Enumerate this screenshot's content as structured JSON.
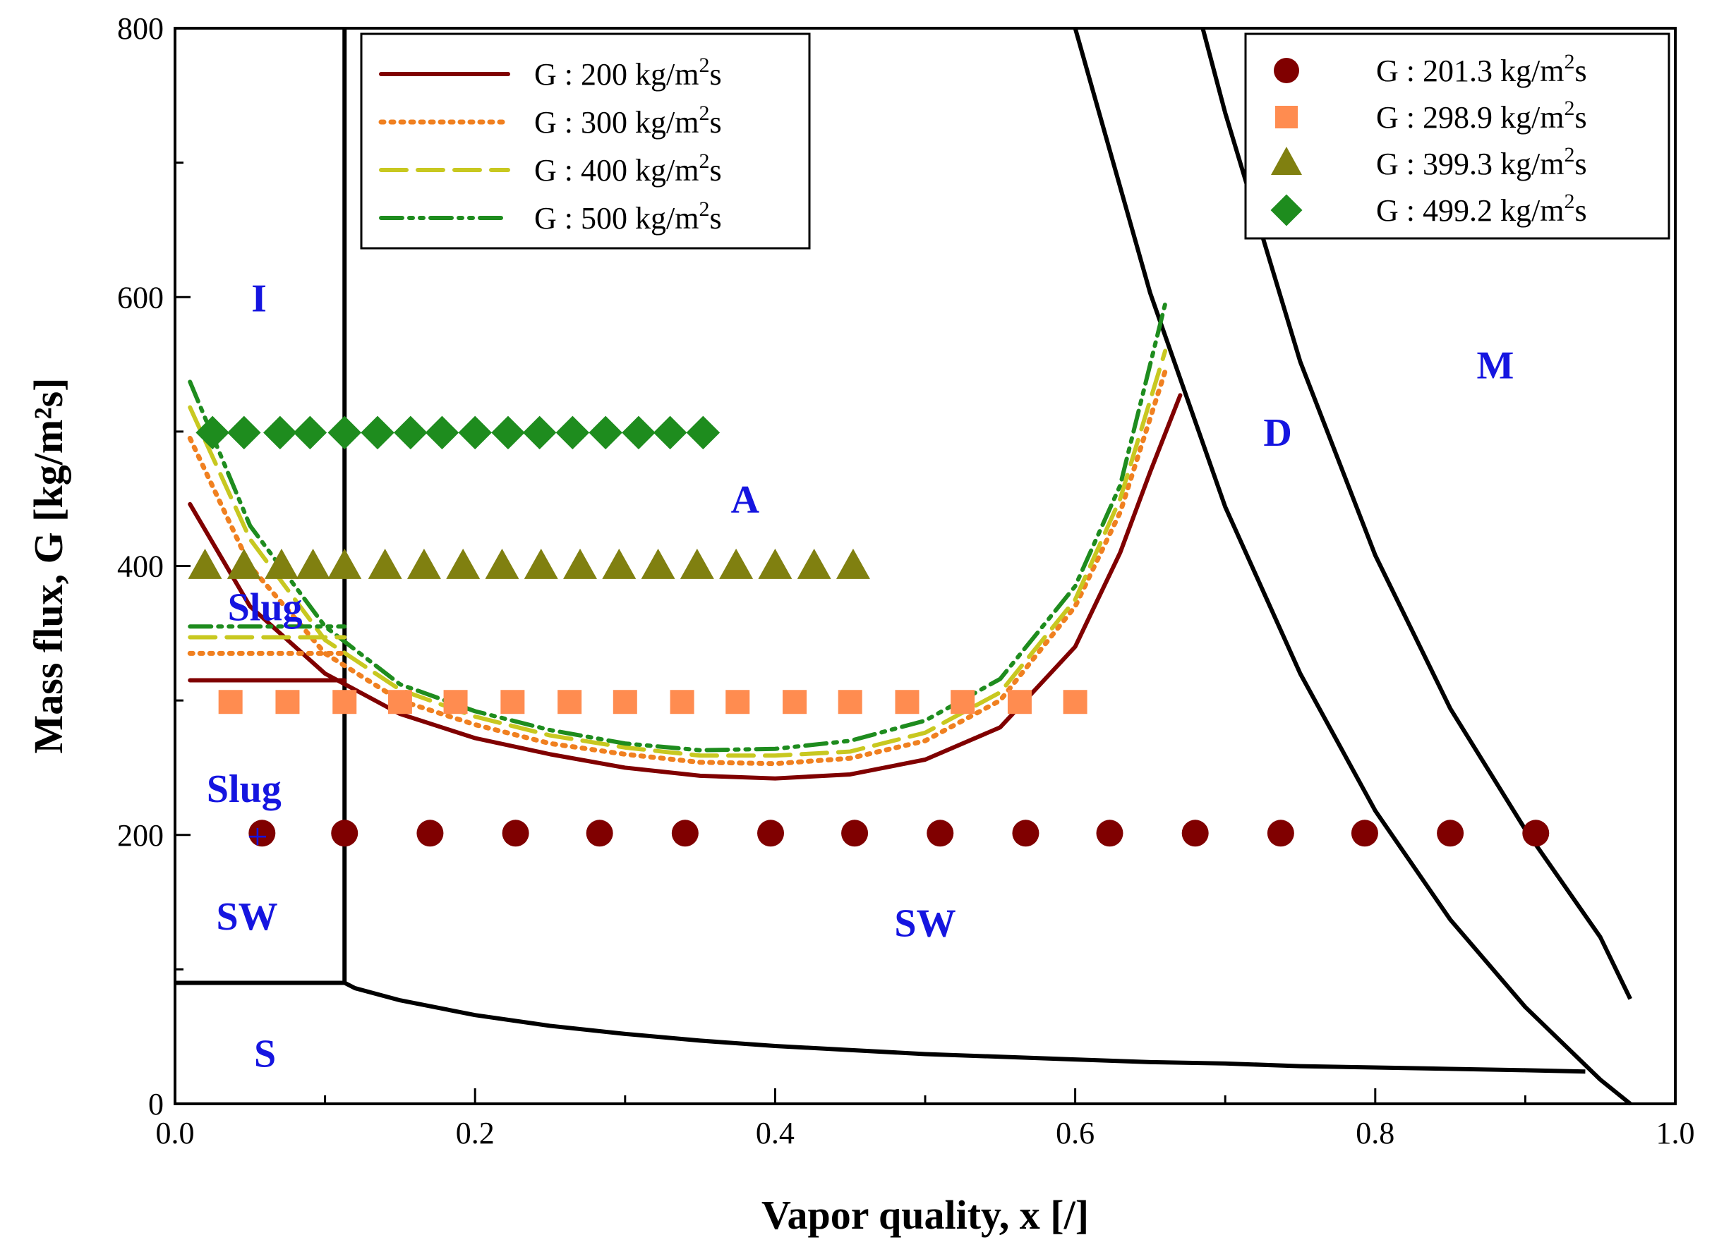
{
  "chart_data": {
    "type": "scatter",
    "title": "",
    "xlabel": "Vapor quality, x [/]",
    "ylabel": "Mass flux, G [kg/m²s]",
    "xlim": [
      0.0,
      1.0
    ],
    "ylim": [
      0,
      800
    ],
    "x_ticks": [
      "0.0",
      "0.2",
      "0.4",
      "0.6",
      "0.8",
      "1.0"
    ],
    "y_ticks": [
      "0",
      "200",
      "400",
      "600",
      "800"
    ],
    "grid": false,
    "boundaries": [
      {
        "name": "I-SW vertical",
        "x": [
          0.113,
          0.113
        ],
        "y": [
          90,
          800
        ]
      },
      {
        "name": "S boundary",
        "x": [
          0.0,
          0.113,
          0.12,
          0.15,
          0.2,
          0.25,
          0.3,
          0.35,
          0.4,
          0.45,
          0.5,
          0.55,
          0.6,
          0.65,
          0.7,
          0.75,
          0.8,
          0.85,
          0.9,
          0.94
        ],
        "y": [
          90,
          90,
          86,
          77,
          66,
          58,
          52,
          47,
          43,
          40,
          37,
          35,
          33,
          31,
          30,
          28,
          27,
          26,
          25,
          24
        ]
      },
      {
        "name": "D boundary (left)",
        "x": [
          0.6,
          0.65,
          0.7,
          0.75,
          0.8,
          0.85,
          0.9,
          0.95,
          0.97
        ],
        "y": [
          800,
          603,
          444,
          320,
          218,
          137,
          72,
          18,
          0
        ]
      },
      {
        "name": "M boundary",
        "x": [
          0.685,
          0.7,
          0.75,
          0.8,
          0.85,
          0.9,
          0.95,
          0.97
        ],
        "y": [
          800,
          737,
          552,
          408,
          294,
          204,
          124,
          78
        ]
      }
    ],
    "series": [
      {
        "name": "G: 200 kg/m²s",
        "kind": "model-line",
        "style": "solid",
        "color": "#800000",
        "x": [
          0.01,
          0.05,
          0.1,
          0.15,
          0.2,
          0.25,
          0.3,
          0.35,
          0.4,
          0.45,
          0.5,
          0.55,
          0.6,
          0.63,
          0.65,
          0.67
        ],
        "y": [
          446,
          370,
          320,
          290,
          272,
          260,
          250,
          244,
          242,
          245,
          256,
          280,
          340,
          410,
          470,
          527
        ]
      },
      {
        "name": "G: 300 kg/m²s",
        "kind": "model-line",
        "style": "dotted",
        "color": "#f08020",
        "x": [
          0.01,
          0.05,
          0.1,
          0.15,
          0.2,
          0.25,
          0.3,
          0.35,
          0.4,
          0.45,
          0.5,
          0.55,
          0.6,
          0.63,
          0.66
        ],
        "y": [
          495,
          400,
          335,
          300,
          282,
          268,
          260,
          254,
          253,
          257,
          270,
          300,
          370,
          440,
          545
        ]
      },
      {
        "name": "G: 400 kg/m²s",
        "kind": "model-line",
        "style": "dashed",
        "color": "#c8c820",
        "x": [
          0.01,
          0.05,
          0.1,
          0.15,
          0.2,
          0.25,
          0.3,
          0.35,
          0.4,
          0.45,
          0.5,
          0.55,
          0.6,
          0.63,
          0.66
        ],
        "y": [
          518,
          420,
          345,
          308,
          288,
          274,
          265,
          259,
          259,
          262,
          276,
          306,
          375,
          450,
          560
        ]
      },
      {
        "name": "G: 500 kg/m²s",
        "kind": "model-line",
        "style": "dash-dot-dot",
        "color": "#1e8c1e",
        "x": [
          0.01,
          0.05,
          0.1,
          0.15,
          0.2,
          0.25,
          0.3,
          0.35,
          0.4,
          0.45,
          0.5,
          0.55,
          0.6,
          0.63,
          0.66
        ],
        "y": [
          537,
          430,
          355,
          312,
          292,
          278,
          268,
          263,
          264,
          270,
          285,
          316,
          385,
          460,
          595
        ]
      },
      {
        "name": "G: 200 kg/m²s (low-x)",
        "kind": "model-line",
        "style": "solid",
        "color": "#800000",
        "x": [
          0.01,
          0.113
        ],
        "y": [
          315,
          315
        ]
      },
      {
        "name": "G: 300 kg/m²s (low-x)",
        "kind": "model-line",
        "style": "dotted",
        "color": "#f08020",
        "x": [
          0.01,
          0.113
        ],
        "y": [
          335,
          335
        ]
      },
      {
        "name": "G: 400 kg/m²s (low-x)",
        "kind": "model-line",
        "style": "dashed",
        "color": "#c8c820",
        "x": [
          0.01,
          0.113
        ],
        "y": [
          347,
          347
        ]
      },
      {
        "name": "G: 500 kg/m²s (low-x)",
        "kind": "model-line",
        "style": "dash-dot-dot",
        "color": "#1e8c1e",
        "x": [
          0.01,
          0.113
        ],
        "y": [
          355,
          355
        ]
      },
      {
        "name": "G: 201.3 kg/m²s",
        "kind": "data-points",
        "marker": "circle",
        "color": "#800000",
        "y_value": 201.3,
        "x": [
          0.058,
          0.113,
          0.17,
          0.227,
          0.283,
          0.34,
          0.397,
          0.453,
          0.51,
          0.567,
          0.623,
          0.68,
          0.737,
          0.793,
          0.85,
          0.907
        ]
      },
      {
        "name": "G: 298.9 kg/m²s",
        "kind": "data-points",
        "marker": "square",
        "color": "#ff8c50",
        "y_value": 298.9,
        "x": [
          0.037,
          0.075,
          0.113,
          0.15,
          0.187,
          0.225,
          0.263,
          0.3,
          0.338,
          0.375,
          0.413,
          0.45,
          0.488,
          0.525,
          0.563,
          0.6
        ]
      },
      {
        "name": "G: 399.3 kg/m²s",
        "kind": "data-points",
        "marker": "triangle",
        "color": "#808010",
        "y_value": 399.3,
        "x": [
          0.02,
          0.046,
          0.071,
          0.092,
          0.113,
          0.14,
          0.166,
          0.192,
          0.218,
          0.244,
          0.27,
          0.296,
          0.322,
          0.348,
          0.374,
          0.4,
          0.426,
          0.452
        ]
      },
      {
        "name": "G: 499.2 kg/m²s",
        "kind": "data-points",
        "marker": "diamond",
        "color": "#1e8c1e",
        "y_value": 499.2,
        "x": [
          0.025,
          0.046,
          0.07,
          0.09,
          0.113,
          0.135,
          0.157,
          0.178,
          0.2,
          0.222,
          0.243,
          0.265,
          0.287,
          0.309,
          0.33,
          0.352
        ]
      }
    ],
    "marker_plus": {
      "label": "+",
      "x": 0.055,
      "y": 199
    },
    "legend_left": {
      "placement": "top-center",
      "entries": [
        {
          "label": "G : 200 kg/m²s",
          "series": "G: 200 kg/m²s"
        },
        {
          "label": "G : 300 kg/m²s",
          "series": "G: 300 kg/m²s"
        },
        {
          "label": "G : 400 kg/m²s",
          "series": "G: 400 kg/m²s"
        },
        {
          "label": "G : 500 kg/m²s",
          "series": "G: 500 kg/m²s"
        }
      ]
    },
    "legend_right": {
      "placement": "top-right",
      "entries": [
        {
          "label": "G : 201.3 kg/m²s",
          "series": "G: 201.3 kg/m²s"
        },
        {
          "label": "G : 298.9 kg/m²s",
          "series": "G: 298.9 kg/m²s"
        },
        {
          "label": "G : 399.3 kg/m²s",
          "series": "G: 399.3 kg/m²s"
        },
        {
          "label": "G : 499.2 kg/m²s",
          "series": "G: 499.2 kg/m²s"
        }
      ]
    },
    "region_labels": [
      {
        "text": "I",
        "x": 0.056,
        "y": 600
      },
      {
        "text": "A",
        "x": 0.38,
        "y": 450
      },
      {
        "text": "Slug",
        "x": 0.06,
        "y": 370
      },
      {
        "text": "Slug",
        "x": 0.046,
        "y": 235
      },
      {
        "text": "SW",
        "x": 0.048,
        "y": 140
      },
      {
        "text": "SW",
        "x": 0.5,
        "y": 135
      },
      {
        "text": "S",
        "x": 0.06,
        "y": 38
      },
      {
        "text": "D",
        "x": 0.735,
        "y": 500
      },
      {
        "text": "M",
        "x": 0.88,
        "y": 550
      }
    ]
  }
}
